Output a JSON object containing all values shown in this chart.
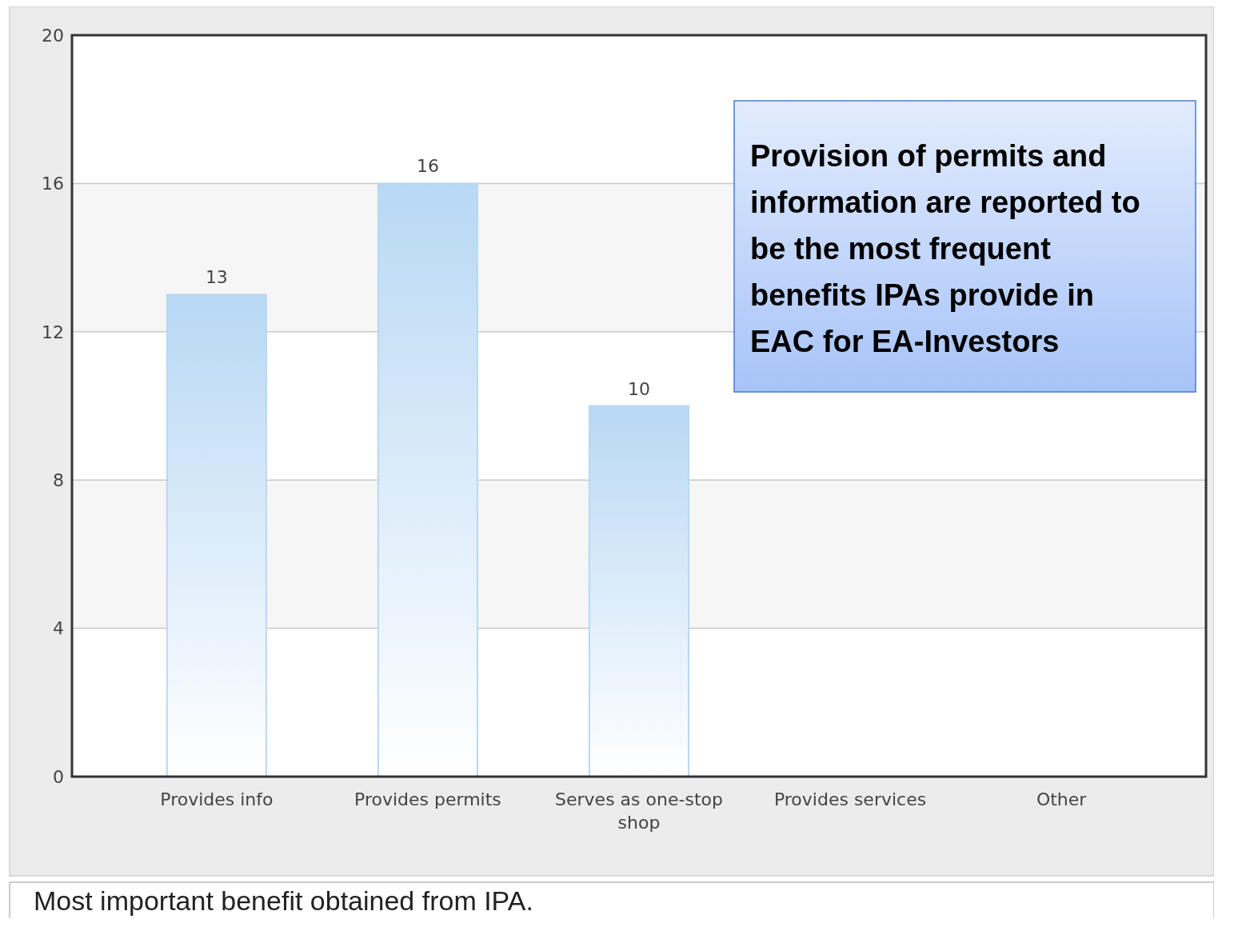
{
  "chart_data": {
    "type": "bar",
    "categories": [
      "Provides info",
      "Provides permits",
      "Serves as one-stop shop",
      "Provides services",
      "Other"
    ],
    "values": [
      13,
      16,
      10,
      0,
      0
    ],
    "value_labels": [
      "13",
      "16",
      "10",
      null,
      null
    ],
    "color": "#b8d8f4",
    "ylim": [
      0,
      20
    ],
    "yticks": [
      0,
      4,
      8,
      12,
      16,
      20
    ],
    "grid": "y",
    "annotations": [
      "Provision of permits and information are reported to be the most frequent benefits IPAs provide in EAC for EA-Investors",
      "Most important benefit obtained from IPA."
    ]
  }
}
